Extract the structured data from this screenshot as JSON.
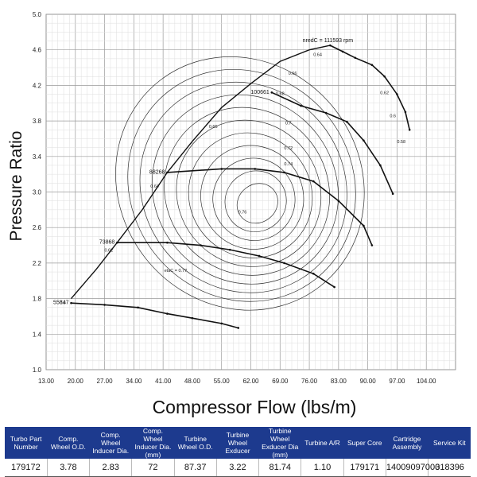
{
  "chart_data": {
    "type": "compressor_map",
    "xlabel": "Compressor Flow (lbs/m)",
    "ylabel": "Pressure Ratio",
    "xlim": [
      13,
      111
    ],
    "ylim": [
      1.0,
      5.0
    ],
    "x_ticks": [
      "13.00",
      "20.00",
      "27.00",
      "34.00",
      "41.00",
      "48.00",
      "55.00",
      "62.00",
      "69.00",
      "76.00",
      "83.00",
      "90.00",
      "97.00",
      "104.00"
    ],
    "y_ticks": [
      "1.0",
      "1.4",
      "1.8",
      "2.2",
      "2.6",
      "3.0",
      "3.4",
      "3.8",
      "4.2",
      "4.6",
      "5.0"
    ],
    "speed_lines": [
      {
        "label": "55847",
        "points": [
          [
            19,
            1.75
          ],
          [
            27,
            1.73
          ],
          [
            35,
            1.7
          ],
          [
            42,
            1.63
          ],
          [
            48,
            1.58
          ],
          [
            55,
            1.52
          ],
          [
            59,
            1.47
          ]
        ]
      },
      {
        "label": "73868",
        "points": [
          [
            30,
            2.43
          ],
          [
            42,
            2.43
          ],
          [
            50,
            2.4
          ],
          [
            57,
            2.35
          ],
          [
            64,
            2.28
          ],
          [
            70,
            2.2
          ],
          [
            77,
            2.08
          ],
          [
            82,
            1.93
          ]
        ]
      },
      {
        "label": "88268",
        "points": [
          [
            42,
            3.22
          ],
          [
            55,
            3.26
          ],
          [
            63,
            3.26
          ],
          [
            70,
            3.22
          ],
          [
            77,
            3.12
          ],
          [
            83,
            2.9
          ],
          [
            89,
            2.62
          ],
          [
            91,
            2.4
          ]
        ]
      },
      {
        "label": "100661",
        "points": [
          [
            67,
            4.12
          ],
          [
            74,
            3.97
          ],
          [
            80,
            3.89
          ],
          [
            85,
            3.79
          ],
          [
            89,
            3.58
          ],
          [
            93,
            3.3
          ],
          [
            96,
            2.98
          ]
        ]
      },
      {
        "label": "nredC = 111593 rpm",
        "points": [
          [
            81,
            4.65
          ],
          [
            84,
            4.58
          ],
          [
            87,
            4.51
          ],
          [
            91,
            4.43
          ],
          [
            94,
            4.3
          ],
          [
            97,
            4.1
          ],
          [
            99,
            3.9
          ],
          [
            100,
            3.7
          ]
        ]
      }
    ],
    "surge_line": [
      [
        19,
        1.8
      ],
      [
        25,
        2.13
      ],
      [
        30,
        2.43
      ],
      [
        36,
        2.8
      ],
      [
        42,
        3.22
      ],
      [
        48,
        3.57
      ],
      [
        55,
        3.95
      ],
      [
        62,
        4.22
      ],
      [
        69,
        4.47
      ],
      [
        76,
        4.6
      ],
      [
        81,
        4.65
      ]
    ],
    "efficiency_islands": [
      {
        "label": "0.6",
        "x": 17,
        "y": 1.74
      },
      {
        "label": "0.62",
        "x": 28,
        "y": 2.33
      },
      {
        "label": "0.64",
        "x": 39,
        "y": 3.05
      },
      {
        "label": "0.65",
        "x": 53,
        "y": 3.72
      },
      {
        "label": "0.66",
        "x": 72,
        "y": 4.32
      },
      {
        "label": "0.64",
        "x": 78,
        "y": 4.53
      },
      {
        "label": "0.68",
        "x": 69,
        "y": 4.09
      },
      {
        "label": "0.7",
        "x": 71,
        "y": 3.76
      },
      {
        "label": "0.72",
        "x": 71,
        "y": 3.48
      },
      {
        "label": "0.74",
        "x": 71,
        "y": 3.3
      },
      {
        "label": "0.76",
        "x": 60,
        "y": 2.76
      },
      {
        "label": "0.62",
        "x": 94,
        "y": 4.1
      },
      {
        "label": "0.6",
        "x": 96,
        "y": 3.84
      },
      {
        "label": "0.58",
        "x": 98,
        "y": 3.55
      },
      {
        "label": "etaC = 0.77",
        "x": 44,
        "y": 2.1
      }
    ]
  },
  "spec_table": {
    "headers": [
      "Turbo Part Number",
      "Comp. Wheel O.D.",
      "Comp. Wheel Inducer Dia.",
      "Comp. Wheel Inducer Dia. (mm)",
      "Turbine Wheel O.D.",
      "Turbine Wheel Exducer",
      "Turbine Wheel Exducer Dia (mm)",
      "Turbine A/R",
      "Super Core",
      "Cartridge Assembly",
      "Service Kit"
    ],
    "values": [
      "179172",
      "3.78",
      "2.83",
      "72",
      "87.37",
      "3.22",
      "81.74",
      "1.10",
      "179171",
      "14009097000",
      "318396"
    ]
  }
}
